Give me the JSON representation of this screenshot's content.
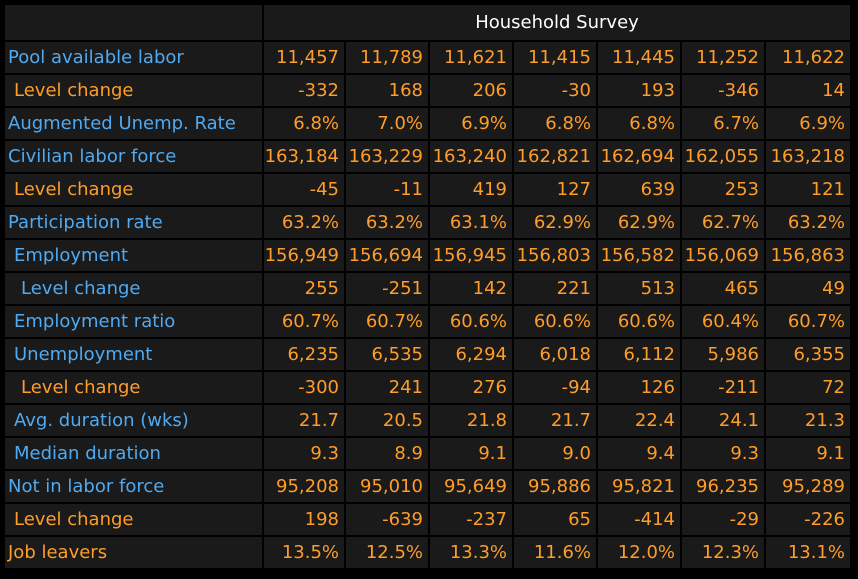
{
  "header": {
    "title": "Household Survey"
  },
  "colors": {
    "label": "#4faaf2",
    "value": "#ff9d2a",
    "cell_bg": "#1a1a1a",
    "background": "#000000"
  },
  "rows": [
    {
      "label": "Pool available labor",
      "values": [
        "11,457",
        "11,789",
        "11,621",
        "11,415",
        "11,445",
        "11,252",
        "11,622"
      ]
    },
    {
      "label": "Level change",
      "values": [
        "-332",
        "168",
        "206",
        "-30",
        "193",
        "-346",
        "14"
      ]
    },
    {
      "label": "Augmented Unemp. Rate",
      "values": [
        "6.8%",
        "7.0%",
        "6.9%",
        "6.8%",
        "6.8%",
        "6.7%",
        "6.9%"
      ]
    },
    {
      "label": "Civilian labor force",
      "values": [
        "163,184",
        "163,229",
        "163,240",
        "162,821",
        "162,694",
        "162,055",
        "163,218"
      ]
    },
    {
      "label": "Level change",
      "values": [
        "-45",
        "-11",
        "419",
        "127",
        "639",
        "253",
        "121"
      ]
    },
    {
      "label": "Participation rate",
      "values": [
        "63.2%",
        "63.2%",
        "63.1%",
        "62.9%",
        "62.9%",
        "62.7%",
        "63.2%"
      ]
    },
    {
      "label": "Employment",
      "values": [
        "156,949",
        "156,694",
        "156,945",
        "156,803",
        "156,582",
        "156,069",
        "156,863"
      ]
    },
    {
      "label": "Level change",
      "values": [
        "255",
        "-251",
        "142",
        "221",
        "513",
        "465",
        "49"
      ]
    },
    {
      "label": "Employment ratio",
      "values": [
        "60.7%",
        "60.7%",
        "60.6%",
        "60.6%",
        "60.6%",
        "60.4%",
        "60.7%"
      ]
    },
    {
      "label": "Unemployment",
      "values": [
        "6,235",
        "6,535",
        "6,294",
        "6,018",
        "6,112",
        "5,986",
        "6,355"
      ]
    },
    {
      "label": "Level change",
      "values": [
        "-300",
        "241",
        "276",
        "-94",
        "126",
        "-211",
        "72"
      ]
    },
    {
      "label": "Avg. duration (wks)",
      "values": [
        "21.7",
        "20.5",
        "21.8",
        "21.7",
        "22.4",
        "24.1",
        "21.3"
      ]
    },
    {
      "label": "Median duration",
      "values": [
        "9.3",
        "8.9",
        "9.1",
        "9.0",
        "9.4",
        "9.3",
        "9.1"
      ]
    },
    {
      "label": "Not in labor force",
      "values": [
        "95,208",
        "95,010",
        "95,649",
        "95,886",
        "95,821",
        "96,235",
        "95,289"
      ]
    },
    {
      "label": "Level change",
      "values": [
        "198",
        "-639",
        "-237",
        "65",
        "-414",
        "-29",
        "-226"
      ]
    },
    {
      "label": "Job leavers",
      "values": [
        "13.5%",
        "12.5%",
        "13.3%",
        "11.6%",
        "12.0%",
        "12.3%",
        "13.1%"
      ]
    }
  ]
}
